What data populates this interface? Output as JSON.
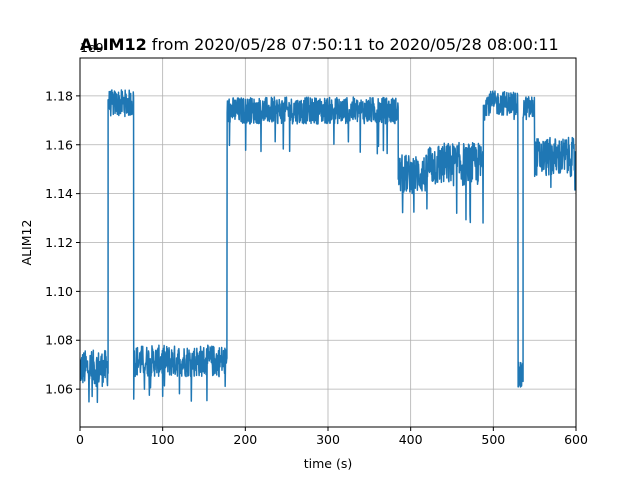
{
  "chart_data": {
    "type": "line",
    "title_bold": "ALIM12",
    "title_rest": " from 2020/05/28 07:50:11 to 2020/05/28 08:00:11",
    "xlabel": "time (s)",
    "ylabel": "ALIM12",
    "offset_label": "1e9",
    "xlim": [
      0,
      600
    ],
    "ylim": [
      1.0445,
      1.1955
    ],
    "xticks": [
      0,
      100,
      200,
      300,
      400,
      500,
      600
    ],
    "yticks": [
      1.06,
      1.08,
      1.1,
      1.12,
      1.14,
      1.16,
      1.18
    ],
    "ytick_labels": [
      "1.06",
      "1.08",
      "1.10",
      "1.12",
      "1.14",
      "1.16",
      "1.18"
    ],
    "xtick_labels": [
      "0",
      "100",
      "200",
      "300",
      "400",
      "500",
      "600"
    ],
    "grid": true,
    "color": "#1f77b4",
    "series": [
      {
        "segments": [
          {
            "x_start": 0,
            "x_end": 34,
            "center": 1.0685,
            "spread": 0.0075,
            "dip": 1.053
          },
          {
            "x_start": 34,
            "x_end": 65,
            "center": 1.177,
            "spread": 0.0055,
            "dip": 1.156
          },
          {
            "x_start": 65,
            "x_end": 178,
            "center": 1.0715,
            "spread": 0.0065,
            "dip": 1.055
          },
          {
            "x_start": 178,
            "x_end": 385,
            "center": 1.174,
            "spread": 0.0055,
            "dip": 1.156
          },
          {
            "x_start": 385,
            "x_end": 420,
            "center": 1.148,
            "spread": 0.008,
            "dip": 1.126
          },
          {
            "x_start": 420,
            "x_end": 488,
            "center": 1.152,
            "spread": 0.009,
            "dip": 1.127
          },
          {
            "x_start": 488,
            "x_end": 530,
            "center": 1.177,
            "spread": 0.005,
            "dip": 1.168
          },
          {
            "x_start": 530,
            "x_end": 536,
            "center": 1.065,
            "spread": 0.006,
            "dip": 1.052
          },
          {
            "x_start": 536,
            "x_end": 550,
            "center": 1.175,
            "spread": 0.005,
            "dip": 1.165
          },
          {
            "x_start": 550,
            "x_end": 600,
            "center": 1.155,
            "spread": 0.008,
            "dip": 1.138
          }
        ]
      }
    ]
  }
}
